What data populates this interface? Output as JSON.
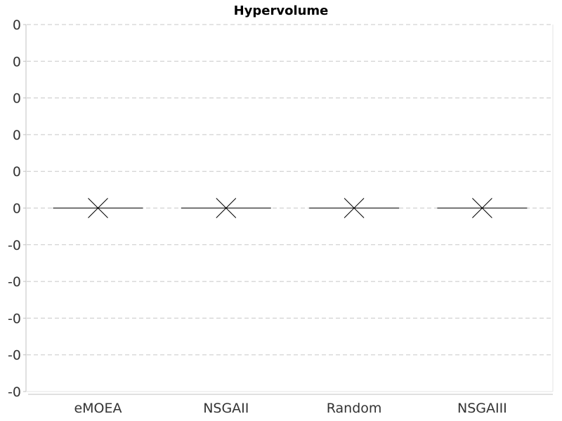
{
  "chart_data": {
    "type": "box",
    "title": "Hypervolume",
    "xlabel": "",
    "ylabel": "",
    "y_tick_labels": [
      "0",
      "0",
      "0",
      "0",
      "0",
      "0",
      "-0",
      "-0",
      "-0",
      "-0",
      "-0"
    ],
    "ylim": [
      -1e-05,
      1e-05
    ],
    "grid": true,
    "categories": [
      "eMOEA",
      "NSGAII",
      "Random",
      "NSGAIII"
    ],
    "values": [
      0,
      0,
      0,
      0
    ],
    "colors": {
      "axis": "#c0c0c0",
      "grid": "#c8c8c8",
      "marker": "#000000"
    }
  }
}
